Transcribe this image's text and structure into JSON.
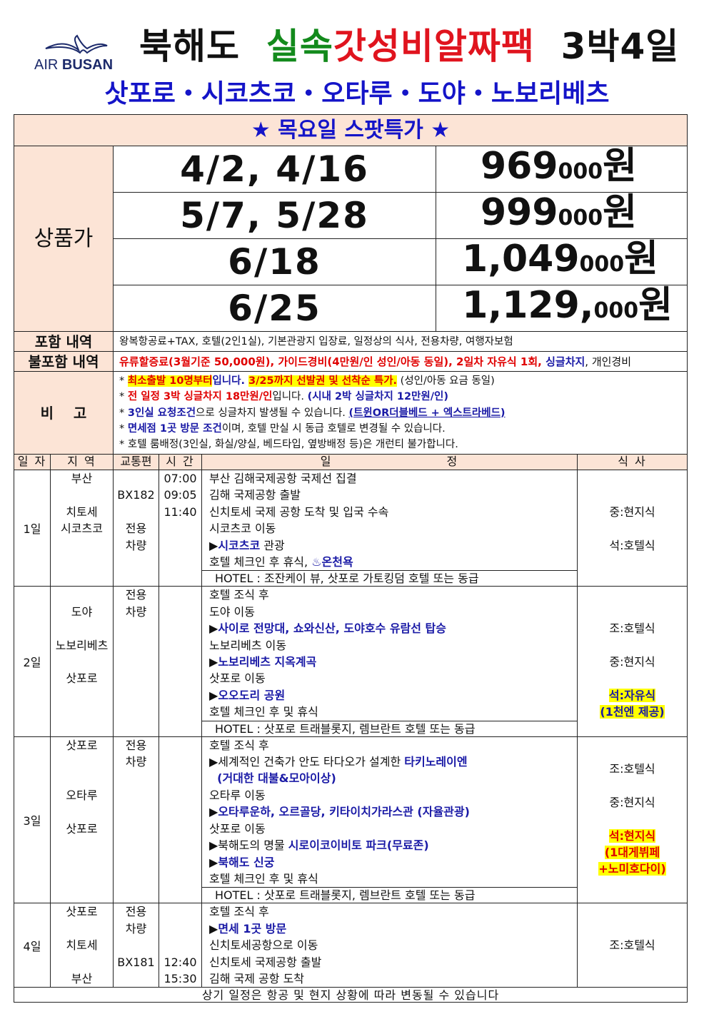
{
  "header": {
    "logo_text": {
      "air": "AIR",
      "busan": "BUSAN"
    },
    "title": {
      "part1": "북해도",
      "part2_green": "실속",
      "part2_red": "갓성비알짜팩",
      "part3": "3박4일"
    },
    "subtitle": "삿포로・시코츠코・오타루・도야・노보리베츠"
  },
  "colors": {
    "green": "#138a1c",
    "red": "#e0141e",
    "blue": "#1414c8",
    "peach": "#fce4d6",
    "highlight": "#ffff00"
  },
  "banner": {
    "star": "★",
    "text": "목요일 스팟특가"
  },
  "pricing": {
    "label": "상품가",
    "rows": [
      {
        "dates": "4/2, 4/16",
        "main": "969",
        "sub": "000",
        "unit": "원"
      },
      {
        "dates": "5/7, 5/28",
        "main": "999",
        "sub": "000",
        "unit": "원"
      },
      {
        "dates": "6/18",
        "main": "1,049",
        "sub": "000",
        "unit": "원"
      },
      {
        "dates": "6/25",
        "main": "1,129,",
        "sub": "000",
        "unit": "원"
      }
    ]
  },
  "included": {
    "label": "포함 내역",
    "text": "왕복항공료+TAX, 호텔(2인1실), 기본관광지 입장료, 일정상의 식사, 전용차량, 여행자보험"
  },
  "excluded": {
    "label": "불포함 내역",
    "segments": [
      {
        "t": "유류할증료(3월기준 50,000원), 가이드경비(4만원/인 성인/아동 동일), 2일차 자유식 1회, ",
        "c": "r"
      },
      {
        "t": "싱글차지",
        "c": "b"
      },
      {
        "t": ", 개인경비",
        "c": "k"
      }
    ]
  },
  "remarks": {
    "label": "비    고",
    "lines": [
      [
        {
          "t": "* ",
          "c": "k"
        },
        {
          "t": "최소출발 10명부터",
          "c": "r",
          "hl": 1
        },
        {
          "t": "입니다. ",
          "c": "b"
        },
        {
          "t": "3/25까지 선발권 및 선착순 특가.",
          "c": "r",
          "hl": 1
        },
        {
          "t": " (성인/아동 요금 동일)",
          "c": "k"
        }
      ],
      [
        {
          "t": "* ",
          "c": "k"
        },
        {
          "t": "전 일정 3박 싱글차지 18만원/인",
          "c": "r"
        },
        {
          "t": "입니다. ",
          "c": "k"
        },
        {
          "t": "(시내 2박 싱글차지 12만원/인)",
          "c": "b"
        }
      ],
      [
        {
          "t": "* ",
          "c": "k"
        },
        {
          "t": "3인실 요청조건",
          "c": "b"
        },
        {
          "t": "으로 싱글차지 발생될 수 있습니다. ",
          "c": "k"
        },
        {
          "t": "(트윈OR더블베드 + 엑스트라베드)",
          "c": "b",
          "u": 1
        }
      ],
      [
        {
          "t": "* ",
          "c": "k"
        },
        {
          "t": "면세점 1곳 방문 조건",
          "c": "b"
        },
        {
          "t": "이며, 호텔 만실 시 동급 호텔로 변경될 수 있습니다.",
          "c": "k"
        }
      ],
      [
        {
          "t": "* 호텔 룸배정(3인실, 화실/양실, 베드타입, 옆방배정 등)은 개런티 불가합니다.",
          "c": "k"
        }
      ]
    ]
  },
  "schedule": {
    "headers": {
      "day": "일 자",
      "region": "지  역",
      "transport": "교통편",
      "time": "시 간",
      "itin_a": "일",
      "itin_b": "정",
      "meal": "식  사"
    },
    "days": [
      {
        "day": "1일",
        "region": [
          "부산",
          "",
          "치토세",
          "시코츠코"
        ],
        "transport": [
          "",
          "BX182",
          "",
          "전용",
          "차량"
        ],
        "time": [
          "07:00",
          "09:05",
          "11:40"
        ],
        "lines": [
          [
            {
              "t": "부산 김해국제공항 국제선 집결",
              "c": "k"
            }
          ],
          [
            {
              "t": "김해 국제공항 출발",
              "c": "k"
            }
          ],
          [
            {
              "t": "신치토세 국제 공항 도착 및 입국 수속",
              "c": "k"
            }
          ],
          [
            {
              "t": "시코츠코 이동",
              "c": "k"
            }
          ],
          [
            {
              "t": "▶",
              "c": "k"
            },
            {
              "t": "시코츠코",
              "c": "b"
            },
            {
              "t": " 관광",
              "c": "k"
            }
          ],
          [
            {
              "t": "호텔 체크인 후 휴식, ",
              "c": "k"
            },
            {
              "t": "♨온천욕",
              "c": "b"
            }
          ]
        ],
        "hotel": "HOTEL : 조잔케이 뷰, 삿포로 가토킹덤 호텔 또는 동급",
        "meals": [
          [],
          [],
          [
            {
              "t": "중:현지식",
              "c": "k"
            }
          ],
          [],
          [
            {
              "t": "석:호텔식",
              "c": "k"
            }
          ]
        ]
      },
      {
        "day": "2일",
        "region": [
          "",
          "도야",
          "",
          "노보리베츠",
          "",
          "삿포로"
        ],
        "transport": [
          "전용",
          "차량"
        ],
        "time": [],
        "lines": [
          [
            {
              "t": "호텔 조식 후",
              "c": "k"
            }
          ],
          [
            {
              "t": "도야 이동",
              "c": "k"
            }
          ],
          [
            {
              "t": "▶",
              "c": "k"
            },
            {
              "t": "사이로 전망대, 쇼와신산, 도야호수 유람선 탑승",
              "c": "b"
            }
          ],
          [
            {
              "t": "노보리베츠 이동",
              "c": "k"
            }
          ],
          [
            {
              "t": "▶",
              "c": "k"
            },
            {
              "t": "노보리베츠 지옥계곡",
              "c": "b"
            }
          ],
          [
            {
              "t": "삿포로 이동",
              "c": "k"
            }
          ],
          [
            {
              "t": "▶",
              "c": "k"
            },
            {
              "t": "오오도리 공원",
              "c": "b"
            }
          ],
          [
            {
              "t": "호텔 체크인 후 및 휴식",
              "c": "k"
            }
          ]
        ],
        "hotel": "HOTEL : 삿포로 트래블롯지, 렘브란트 호텔 또는 동급",
        "meals": [
          [],
          [],
          [
            {
              "t": "조:호텔식",
              "c": "k"
            }
          ],
          [],
          [
            {
              "t": "중:현지식",
              "c": "k"
            }
          ],
          [],
          [
            {
              "t": "석:자유식",
              "c": "b",
              "hl": 1
            }
          ],
          [
            {
              "t": "(1천엔 제공)",
              "c": "b",
              "hl": 1
            }
          ]
        ]
      },
      {
        "day": "3일",
        "region": [
          "삿포로",
          "",
          "",
          "오타루",
          "",
          "삿포로"
        ],
        "transport": [
          "전용",
          "차량"
        ],
        "time": [],
        "lines": [
          [
            {
              "t": "호텔 조식 후",
              "c": "k"
            }
          ],
          [
            {
              "t": "▶세계적인 건축가 안도 타다오가 설계한 ",
              "c": "k"
            },
            {
              "t": "타키노레이엔",
              "c": "b"
            }
          ],
          [
            {
              "t": "  (거대한 대불&모아이상)",
              "c": "b"
            }
          ],
          [
            {
              "t": "오타루 이동",
              "c": "k"
            }
          ],
          [
            {
              "t": "▶",
              "c": "k"
            },
            {
              "t": "오타루운하, 오르골당, 키타이치가라스관 (자율관광)",
              "c": "b"
            }
          ],
          [
            {
              "t": "삿포로 이동",
              "c": "k"
            }
          ],
          [
            {
              "t": "▶북해도의 명물 ",
              "c": "k"
            },
            {
              "t": "시로이코이비토 파크(무료존)",
              "c": "b"
            }
          ],
          [
            {
              "t": "▶",
              "c": "k"
            },
            {
              "t": "북해도 신궁",
              "c": "b"
            }
          ],
          [
            {
              "t": "호텔 체크인 후 및 휴식",
              "c": "k"
            }
          ]
        ],
        "hotel": "HOTEL : 삿포로 트래블롯지, 렘브란트 호텔 또는 동급",
        "meals": [
          [],
          [
            {
              "t": "조:호텔식",
              "c": "k"
            }
          ],
          [],
          [
            {
              "t": "중:현지식",
              "c": "k"
            }
          ],
          [],
          [
            {
              "t": "석:현지식",
              "c": "r",
              "hl": 1
            }
          ],
          [
            {
              "t": "(1대게뷔페",
              "c": "r",
              "hl": 1
            }
          ],
          [
            {
              "t": "+노미호다이)",
              "c": "r",
              "hl": 1
            }
          ]
        ]
      },
      {
        "day": "4일",
        "region": [
          "삿포로",
          "",
          "치토세",
          "",
          "부산"
        ],
        "transport": [
          "전용",
          "차량",
          "",
          "BX181"
        ],
        "time": [
          "",
          "",
          "",
          "12:40",
          "15:30"
        ],
        "lines": [
          [
            {
              "t": "호텔 조식 후",
              "c": "k"
            }
          ],
          [
            {
              "t": "▶",
              "c": "k"
            },
            {
              "t": "면세 1곳 방문",
              "c": "b"
            }
          ],
          [
            {
              "t": "신치토세공항으로 이동",
              "c": "k"
            }
          ],
          [
            {
              "t": "신치토세 국제공항 출발",
              "c": "k"
            }
          ],
          [
            {
              "t": "김해 국제 공항 도착",
              "c": "k"
            }
          ]
        ],
        "hotel": null,
        "meals": [
          [],
          [],
          [
            {
              "t": "조:호텔식",
              "c": "k"
            }
          ]
        ]
      }
    ],
    "footer": "상기 일정은 항공 및 현지 상황에 따라 변동될 수 있습니다"
  }
}
